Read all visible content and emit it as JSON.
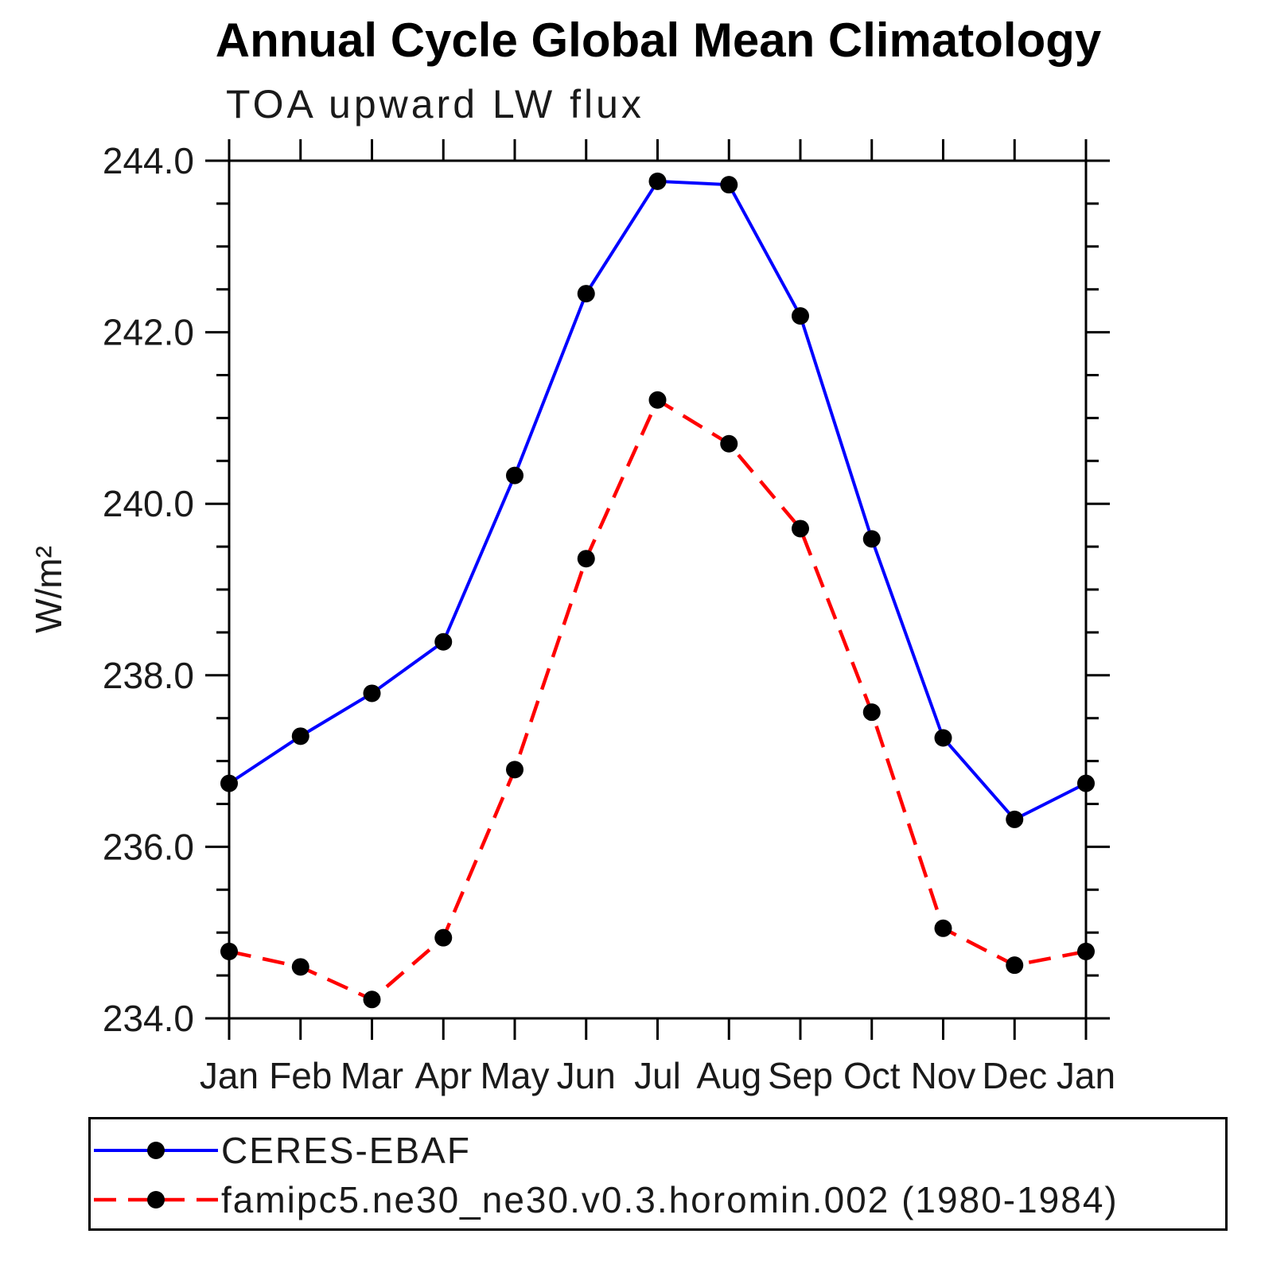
{
  "chart_data": {
    "type": "line",
    "title": "Annual Cycle Global Mean Climatology",
    "subtitle": "TOA upward LW flux",
    "ylabel": "W/m²",
    "xlabel": "",
    "x_categories": [
      "Jan",
      "Feb",
      "Mar",
      "Apr",
      "May",
      "Jun",
      "Jul",
      "Aug",
      "Sep",
      "Oct",
      "Nov",
      "Dec",
      "Jan"
    ],
    "ylim": [
      234.0,
      244.0
    ],
    "y_major_step": 2.0,
    "y_minor_step": 0.5,
    "y_tick_labels": [
      "244.0",
      "242.0",
      "240.0",
      "238.0",
      "236.0",
      "234.0"
    ],
    "grid": false,
    "frame": true,
    "tick_direction": "out",
    "legend_position": "bottom-left",
    "series": [
      {
        "name": "CERES-EBAF",
        "color": "#0000ff",
        "line_style": "solid",
        "line_width": 4,
        "marker": "circle",
        "marker_color": "#000000",
        "values": [
          236.74,
          237.29,
          237.79,
          238.39,
          240.33,
          242.45,
          243.76,
          243.72,
          242.19,
          239.59,
          237.27,
          236.32,
          236.74
        ]
      },
      {
        "name": "famipc5.ne30_ne30.v0.3.horomin.002 (1980-1984)",
        "color": "#ff0000",
        "line_style": "dashed",
        "line_width": 4.5,
        "marker": "circle",
        "marker_color": "#000000",
        "values": [
          234.78,
          234.6,
          234.22,
          234.94,
          236.9,
          239.36,
          241.21,
          240.7,
          239.71,
          237.57,
          235.05,
          234.62,
          234.78
        ]
      }
    ]
  }
}
